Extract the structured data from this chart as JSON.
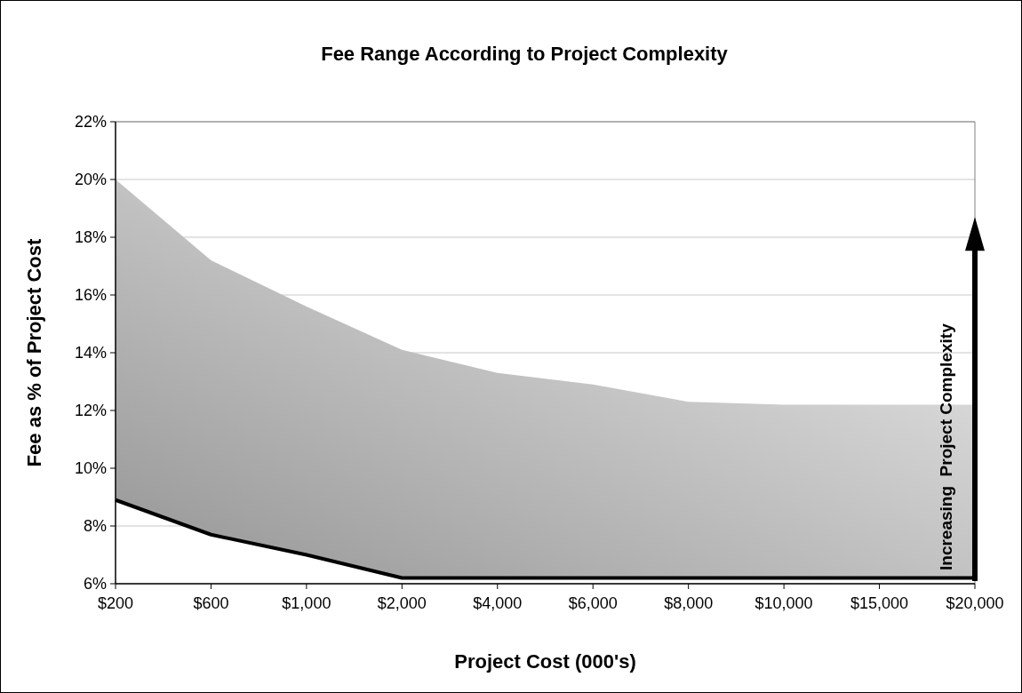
{
  "chart_data": {
    "type": "line",
    "title": "Fee Range According to Project Complexity",
    "xlabel": "Project Cost (000's)",
    "ylabel": "Fee as % of Project Cost",
    "categories": [
      "$200",
      "$600",
      "$1,000",
      "$2,000",
      "$4,000",
      "$6,000",
      "$8,000",
      "$10,000",
      "$15,000",
      "$20,000"
    ],
    "series": [
      {
        "color": "#000000",
        "values": [
          8.9,
          7.7,
          7.0,
          6.2,
          6.2,
          6.2,
          6.2,
          6.2,
          6.2,
          6.2
        ],
        "lower": [
          8.9,
          7.7,
          7.0,
          6.2,
          6.2,
          6.2,
          6.2,
          6.2,
          6.2,
          6.2
        ],
        "upper": [
          20,
          17.2,
          15.6,
          14.1,
          13.3,
          12.9,
          12.3,
          12.2,
          12.2,
          12.2
        ]
      }
    ],
    "ylim": [
      6,
      22
    ],
    "yticks": [
      {
        "value": 6,
        "label": "6%"
      },
      {
        "value": 8,
        "label": "8%"
      },
      {
        "value": 10,
        "label": "10%"
      },
      {
        "value": 12,
        "label": "12%"
      },
      {
        "value": 14,
        "label": "14%"
      },
      {
        "value": 16,
        "label": "16%"
      },
      {
        "value": 18,
        "label": "18%"
      },
      {
        "value": 20,
        "label": "20%"
      },
      {
        "value": 22,
        "label": "22%"
      }
    ],
    "grid": "y",
    "marker": "none",
    "line_style": "solid",
    "annotations": [
      "Increasing  Project Complexity"
    ]
  }
}
